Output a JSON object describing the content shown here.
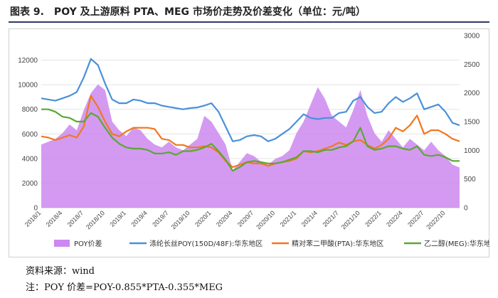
{
  "figure": {
    "title": "图表 9.　POY 及上游原料 PTA、MEG 市场价走势及价差变化（单位：元/吨）",
    "source": "资料来源：wind",
    "note": "注：POY 价差=POY-0.855*PTA-0.355*MEG"
  },
  "chart_data": {
    "type": "line",
    "x": [
      "2018/1",
      "2018/2",
      "2018/3",
      "2018/4",
      "2018/5",
      "2018/6",
      "2018/7",
      "2018/8",
      "2018/9",
      "2018/10",
      "2018/11",
      "2018/12",
      "2019/1",
      "2019/2",
      "2019/3",
      "2019/4",
      "2019/5",
      "2019/6",
      "2019/7",
      "2019/8",
      "2019/9",
      "2019/10",
      "2019/11",
      "2019/12",
      "2020/1",
      "2020/2",
      "2020/3",
      "2020/4",
      "2020/5",
      "2020/6",
      "2020/7",
      "2020/8",
      "2020/9",
      "2020/10",
      "2020/11",
      "2020/12",
      "2021/1",
      "2021/2",
      "2021/3",
      "2021/4",
      "2021/5",
      "2021/6",
      "2021/7",
      "2021/8",
      "2021/9",
      "2021/10",
      "2021/11",
      "2021/12",
      "2022/1",
      "2022/2",
      "2022/3",
      "2022/4",
      "2022/5",
      "2022/6",
      "2022/7",
      "2022/8",
      "2022/9",
      "2022/10",
      "2022/11",
      "2022/12"
    ],
    "x_tick_labels": [
      "2018/1",
      "2018/4",
      "2018/7",
      "2018/10",
      "2019/1",
      "2019/4",
      "2019/7",
      "2019/10",
      "2020/1",
      "2020/4",
      "2020/7",
      "2020/10",
      "2021/1",
      "2021/4",
      "2021/7",
      "2021/10",
      "2022/1",
      "2022/4",
      "2022/7",
      "2022/10"
    ],
    "ylim": [
      0,
      14000
    ],
    "y_ticks": [
      0,
      2000,
      4000,
      6000,
      8000,
      10000,
      12000
    ],
    "y2lim": [
      0,
      3000
    ],
    "y2_ticks": [
      0,
      500,
      1000,
      1500,
      2000,
      2500,
      3000
    ],
    "grid": true,
    "legend_position": "bottom",
    "series": [
      {
        "name": "POY价差",
        "kind": "area",
        "axis": "right",
        "color": "#cc88ee",
        "values": [
          1100,
          1150,
          1200,
          1300,
          1450,
          1350,
          1700,
          2000,
          2150,
          2050,
          1500,
          1350,
          1250,
          1400,
          1350,
          1200,
          1100,
          1050,
          1150,
          1050,
          1000,
          1100,
          1200,
          1600,
          1500,
          1300,
          1100,
          650,
          800,
          950,
          900,
          800,
          750,
          850,
          900,
          1000,
          1300,
          1500,
          1800,
          2100,
          1900,
          1600,
          1500,
          1400,
          1700,
          2050,
          1600,
          1300,
          1150,
          1350,
          1200,
          1050,
          1200,
          1100,
          1000,
          1150,
          1000,
          900,
          750,
          700
        ]
      },
      {
        "name": "涤纶长丝POY(150D/48F):华东地区",
        "kind": "line",
        "axis": "left",
        "color": "#4a90d9",
        "values": [
          8900,
          8800,
          8700,
          8900,
          9100,
          9400,
          10600,
          12100,
          11600,
          10100,
          8800,
          8500,
          8500,
          8800,
          8700,
          8500,
          8500,
          8300,
          8200,
          8100,
          8000,
          8100,
          8150,
          8300,
          8500,
          7800,
          6600,
          5400,
          5500,
          5800,
          5900,
          5800,
          5400,
          5600,
          6000,
          6400,
          7000,
          7600,
          7300,
          7200,
          7300,
          7300,
          7700,
          7800,
          8700,
          9000,
          8200,
          7700,
          7800,
          8500,
          9000,
          8600,
          8900,
          9300,
          8000,
          8200,
          8400,
          7800,
          6900,
          6700
        ]
      },
      {
        "name": "精对苯二甲酸(PTA):华东地区",
        "kind": "line",
        "axis": "left",
        "color": "#f07820",
        "values": [
          5800,
          5700,
          5500,
          5700,
          5900,
          5700,
          6600,
          9100,
          8200,
          7000,
          6000,
          5800,
          6200,
          6500,
          6500,
          6500,
          6400,
          5600,
          5500,
          5100,
          5100,
          4900,
          4900,
          5000,
          4900,
          4500,
          3800,
          3300,
          3500,
          3700,
          3600,
          3600,
          3400,
          3600,
          3700,
          3800,
          4000,
          4600,
          4500,
          4600,
          4800,
          5000,
          5300,
          5100,
          5400,
          5500,
          5100,
          4800,
          5100,
          5600,
          6500,
          6200,
          6700,
          7500,
          6000,
          6300,
          6300,
          6000,
          5600,
          5400
        ]
      },
      {
        "name": "乙二醇(MEG):华东地区",
        "kind": "line",
        "axis": "left",
        "color": "#5aa832",
        "values": [
          8000,
          8000,
          7800,
          7400,
          7300,
          7000,
          7000,
          7700,
          7400,
          6500,
          5700,
          5200,
          4900,
          4800,
          4800,
          4700,
          4400,
          4400,
          4500,
          4300,
          4600,
          4600,
          4700,
          4900,
          5200,
          4600,
          3900,
          3000,
          3300,
          3700,
          3800,
          3700,
          3600,
          3600,
          3700,
          3900,
          4100,
          4600,
          4600,
          4500,
          4700,
          4700,
          4900,
          5000,
          5400,
          6500,
          5000,
          4700,
          4800,
          5000,
          5000,
          4800,
          4700,
          5000,
          4300,
          4200,
          4300,
          4100,
          3800,
          3800
        ]
      }
    ]
  }
}
